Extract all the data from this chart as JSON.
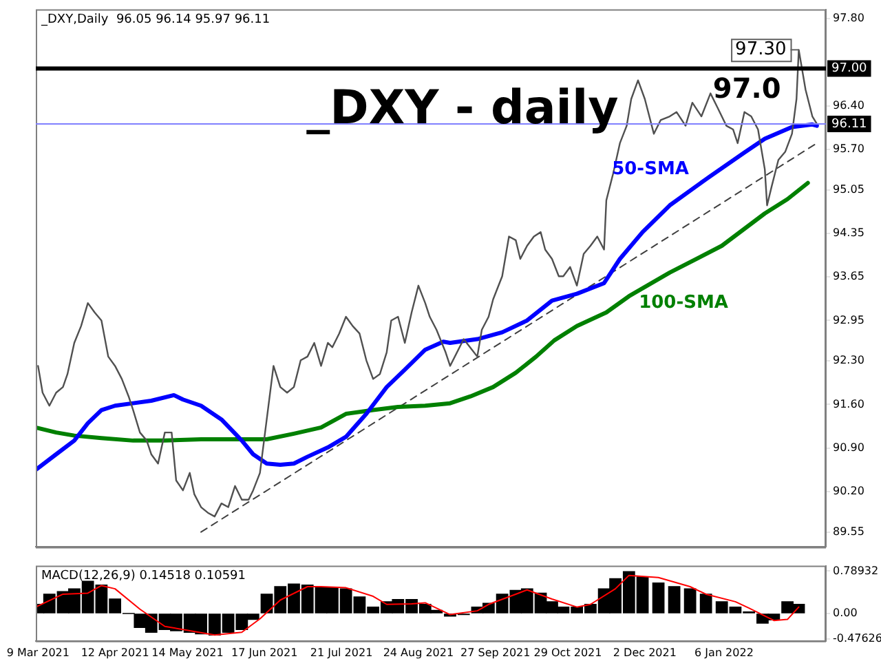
{
  "chart_data": [
    {
      "type": "line",
      "title": "_DXY,Daily  96.05 96.14 95.97 96.11",
      "marker": "none",
      "tick_labels": "y",
      "annotations": [
        "_DXY - daily",
        {
          "text": "97.30",
          "x": "2022-02-08",
          "y": 97.3
        },
        "97.0"
      ],
      "xlim": [
        "2021-03-08",
        "2022-02-20"
      ],
      "ylim": [
        89.31,
        97.95
      ],
      "yticks": [
        {
          "value": 89.55,
          "label": "89.55"
        },
        {
          "value": 90.2,
          "label": "90.20"
        },
        {
          "value": 90.9,
          "label": "90.90"
        },
        {
          "value": 91.6,
          "label": "91.60"
        },
        {
          "value": 92.3,
          "label": "92.30"
        },
        {
          "value": 92.95,
          "label": "92.95"
        },
        {
          "value": 93.65,
          "label": "93.65"
        },
        {
          "value": 94.35,
          "label": "94.35"
        },
        {
          "value": 95.05,
          "label": "95.05"
        },
        {
          "value": 95.7,
          "label": "95.70"
        },
        {
          "value": 96.4,
          "label": "96.40"
        },
        {
          "value": 97.8,
          "label": "97.80"
        }
      ],
      "ref_lines": [
        {
          "axis": "y",
          "value": 97,
          "label": "97.00",
          "color": "#000000"
        },
        {
          "axis": "y",
          "value": 96.11,
          "label": "96.11",
          "color": "#8080ff"
        }
      ],
      "x": [
        "2021-03-09",
        "2021-03-11",
        "2021-03-14",
        "2021-03-17",
        "2021-03-20",
        "2021-03-22",
        "2021-03-25",
        "2021-03-28",
        "2021-03-31",
        "2021-04-03",
        "2021-04-06",
        "2021-04-09",
        "2021-04-12",
        "2021-04-15",
        "2021-04-18",
        "2021-04-20",
        "2021-04-23",
        "2021-04-26",
        "2021-04-28",
        "2021-05-01",
        "2021-05-04",
        "2021-05-07",
        "2021-05-09",
        "2021-05-12",
        "2021-05-15",
        "2021-05-17",
        "2021-05-20",
        "2021-05-23",
        "2021-05-26",
        "2021-05-29",
        "2021-06-01",
        "2021-06-04",
        "2021-06-07",
        "2021-06-10",
        "2021-06-12",
        "2021-06-15",
        "2021-06-18",
        "2021-06-21",
        "2021-06-24",
        "2021-06-27",
        "2021-06-30",
        "2021-07-03",
        "2021-07-06",
        "2021-07-09",
        "2021-07-12",
        "2021-07-15",
        "2021-07-17",
        "2021-07-20",
        "2021-07-23",
        "2021-07-26",
        "2021-07-29",
        "2021-08-01",
        "2021-08-04",
        "2021-08-07",
        "2021-08-10",
        "2021-08-12",
        "2021-08-15",
        "2021-08-18",
        "2021-08-21",
        "2021-08-24",
        "2021-08-27",
        "2021-08-29",
        "2021-09-01",
        "2021-09-05",
        "2021-09-07",
        "2021-09-13",
        "2021-09-19",
        "2021-09-21",
        "2021-09-24",
        "2021-09-26",
        "2021-09-30",
        "2021-10-03",
        "2021-10-06",
        "2021-10-08",
        "2021-10-11",
        "2021-10-14",
        "2021-10-17",
        "2021-10-19",
        "2021-10-22",
        "2021-10-25",
        "2021-10-27",
        "2021-10-30",
        "2021-11-02",
        "2021-11-05",
        "2021-11-08",
        "2021-11-11",
        "2021-11-14",
        "2021-11-15",
        "2021-11-18",
        "2021-11-21",
        "2021-11-24",
        "2021-11-26",
        "2021-11-29",
        "2021-12-02",
        "2021-12-06",
        "2021-12-09",
        "2021-12-13",
        "2021-12-16",
        "2021-12-20",
        "2021-12-23",
        "2021-12-27",
        "2021-12-31",
        "2022-01-03",
        "2022-01-07",
        "2022-01-10",
        "2022-01-12",
        "2022-01-15",
        "2022-01-18",
        "2022-01-21",
        "2022-01-24",
        "2022-01-25",
        "2022-01-27",
        "2022-01-30",
        "2022-02-02",
        "2022-02-05",
        "2022-02-07",
        "2022-02-08",
        "2022-02-11",
        "2022-02-14",
        "2022-02-16"
      ],
      "series": [
        {
          "color": "#505050",
          "values": [
            92.22,
            91.79,
            91.58,
            91.79,
            91.88,
            92.09,
            92.59,
            92.86,
            93.23,
            93.08,
            92.95,
            92.37,
            92.22,
            92.01,
            91.73,
            91.51,
            91.15,
            91.02,
            90.8,
            90.65,
            91.15,
            91.15,
            90.38,
            90.22,
            90.5,
            90.16,
            89.95,
            89.86,
            89.8,
            90.01,
            89.95,
            90.29,
            90.07,
            90.07,
            90.22,
            90.5,
            91.36,
            92.22,
            91.88,
            91.79,
            91.88,
            92.31,
            92.37,
            92.59,
            92.22,
            92.59,
            92.52,
            92.74,
            93.01,
            92.86,
            92.74,
            92.31,
            92.01,
            92.09,
            92.44,
            92.95,
            93.01,
            92.59,
            93.08,
            93.51,
            93.23,
            93.01,
            92.8,
            92.44,
            92.22,
            92.65,
            92.37,
            92.8,
            93.01,
            93.29,
            93.66,
            94.3,
            94.24,
            93.94,
            94.15,
            94.3,
            94.37,
            94.09,
            93.94,
            93.66,
            93.66,
            93.81,
            93.51,
            94.02,
            94.15,
            94.3,
            94.09,
            94.88,
            95.31,
            95.8,
            96.08,
            96.51,
            96.81,
            96.51,
            95.95,
            96.17,
            96.23,
            96.3,
            96.08,
            96.45,
            96.23,
            96.6,
            96.38,
            96.08,
            96.02,
            95.8,
            96.3,
            96.23,
            96.02,
            95.38,
            94.8,
            95.1,
            95.53,
            95.66,
            95.95,
            96.51,
            97.3,
            96.66,
            96.23,
            96.11
          ]
        },
        {
          "name": "50-SMA",
          "color": "#0000ff",
          "x": [
            "2021-03-08",
            "2021-03-17",
            "2021-03-25",
            "2021-03-31",
            "2021-04-06",
            "2021-04-12",
            "2021-04-20",
            "2021-04-28",
            "2021-05-08",
            "2021-05-12",
            "2021-05-20",
            "2021-05-29",
            "2021-06-07",
            "2021-06-12",
            "2021-06-18",
            "2021-06-24",
            "2021-06-30",
            "2021-07-06",
            "2021-07-15",
            "2021-07-23",
            "2021-08-01",
            "2021-08-10",
            "2021-08-18",
            "2021-08-27",
            "2021-09-04",
            "2021-09-07",
            "2021-09-19",
            "2021-09-30",
            "2021-10-11",
            "2021-10-22",
            "2021-11-02",
            "2021-11-14",
            "2021-11-21",
            "2021-12-01",
            "2021-12-13",
            "2021-12-29",
            "2022-01-15",
            "2022-01-24",
            "2022-02-05",
            "2022-02-14",
            "2022-02-16"
          ],
          "values": [
            90.55,
            90.8,
            91.02,
            91.3,
            91.51,
            91.58,
            91.62,
            91.66,
            91.75,
            91.68,
            91.58,
            91.36,
            91.02,
            90.8,
            90.65,
            90.63,
            90.65,
            90.76,
            90.91,
            91.08,
            91.45,
            91.88,
            92.16,
            92.48,
            92.61,
            92.59,
            92.65,
            92.76,
            92.95,
            93.27,
            93.38,
            93.55,
            93.94,
            94.37,
            94.8,
            95.22,
            95.65,
            95.87,
            96.06,
            96.1,
            96.08
          ]
        },
        {
          "name": "100-SMA",
          "color": "#008000",
          "x": [
            "2021-03-08",
            "2021-03-17",
            "2021-03-25",
            "2021-04-06",
            "2021-04-20",
            "2021-05-04",
            "2021-05-20",
            "2021-06-07",
            "2021-06-18",
            "2021-06-30",
            "2021-07-12",
            "2021-07-23",
            "2021-08-04",
            "2021-08-15",
            "2021-08-27",
            "2021-09-07",
            "2021-09-16",
            "2021-09-26",
            "2021-10-06",
            "2021-10-15",
            "2021-10-23",
            "2021-11-02",
            "2021-11-15",
            "2021-11-25",
            "2021-12-13",
            "2022-01-05",
            "2022-01-24",
            "2022-02-03",
            "2022-02-12"
          ],
          "values": [
            91.23,
            91.15,
            91.1,
            91.06,
            91.02,
            91.02,
            91.04,
            91.04,
            91.04,
            91.13,
            91.23,
            91.45,
            91.51,
            91.56,
            91.58,
            91.62,
            91.73,
            91.88,
            92.11,
            92.37,
            92.63,
            92.86,
            93.08,
            93.34,
            93.72,
            94.15,
            94.67,
            94.9,
            95.16
          ]
        },
        {
          "type": "line",
          "color": "#404040",
          "line_style": "dashed",
          "x": [
            "2021-05-20",
            "2022-02-16"
          ],
          "values": [
            89.55,
            95.8
          ]
        }
      ]
    },
    {
      "type": "bar",
      "title": "MACD(12,26,9) 0.14518 0.10591",
      "marker": "none",
      "xlim": [
        "2021-03-08",
        "2022-02-20"
      ],
      "ylim": [
        -0.51,
        0.89
      ],
      "xticks": [
        {
          "value": "2021-03-09",
          "label": "9 Mar 2021"
        },
        {
          "value": "2021-04-12",
          "label": "12 Apr 2021"
        },
        {
          "value": "2021-05-14",
          "label": "14 May 2021"
        },
        {
          "value": "2021-06-17",
          "label": "17 Jun 2021"
        },
        {
          "value": "2021-07-21",
          "label": "21 Jul 2021"
        },
        {
          "value": "2021-08-24",
          "label": "24 Aug 2021"
        },
        {
          "value": "2021-09-27",
          "label": "27 Sep 2021"
        },
        {
          "value": "2021-10-29",
          "label": "29 Oct 2021"
        },
        {
          "value": "2021-12-02",
          "label": "2 Dec 2021"
        },
        {
          "value": "2022-01-06",
          "label": "6 Jan 2022"
        }
      ],
      "yticks": [
        {
          "value": -0.47626,
          "label": "-0.47626"
        },
        {
          "value": 0,
          "label": "0.00"
        },
        {
          "value": 0.78932,
          "label": "0.78932"
        }
      ],
      "x": [
        "2021-03-09",
        "2021-03-14",
        "2021-03-20",
        "2021-03-25",
        "2021-03-31",
        "2021-04-06",
        "2021-04-12",
        "2021-04-18",
        "2021-04-23",
        "2021-04-28",
        "2021-05-04",
        "2021-05-09",
        "2021-05-15",
        "2021-05-20",
        "2021-05-26",
        "2021-06-01",
        "2021-06-07",
        "2021-06-12",
        "2021-06-18",
        "2021-06-24",
        "2021-06-30",
        "2021-07-06",
        "2021-07-12",
        "2021-07-17",
        "2021-07-23",
        "2021-07-29",
        "2021-08-04",
        "2021-08-10",
        "2021-08-15",
        "2021-08-21",
        "2021-08-27",
        "2021-09-01",
        "2021-09-07",
        "2021-09-13",
        "2021-09-19",
        "2021-09-24",
        "2021-09-30",
        "2021-10-06",
        "2021-10-11",
        "2021-10-17",
        "2021-10-22",
        "2021-10-27",
        "2021-11-02",
        "2021-11-08",
        "2021-11-14",
        "2021-11-19",
        "2021-11-25",
        "2021-12-01",
        "2021-12-08",
        "2021-12-15",
        "2021-12-22",
        "2021-12-29",
        "2022-01-05",
        "2022-01-11",
        "2022-01-17",
        "2022-01-23",
        "2022-01-28",
        "2022-02-03",
        "2022-02-08"
      ],
      "series": [
        {
          "color": "#000000",
          "values": [
            0.17,
            0.36,
            0.41,
            0.46,
            0.6,
            0.53,
            0.27,
            0,
            -0.26,
            -0.35,
            -0.3,
            -0.32,
            -0.35,
            -0.38,
            -0.4,
            -0.35,
            -0.3,
            -0.11,
            0.36,
            0.5,
            0.55,
            0.53,
            0.48,
            0.48,
            0.46,
            0.31,
            0.12,
            0.22,
            0.26,
            0.26,
            0.17,
            0.06,
            -0.05,
            -0.02,
            0.12,
            0.19,
            0.36,
            0.43,
            0.46,
            0.38,
            0.22,
            0.12,
            0.12,
            0.17,
            0.46,
            0.65,
            0.78,
            0.68,
            0.57,
            0.5,
            0.46,
            0.36,
            0.22,
            0.12,
            0.03,
            -0.18,
            -0.12,
            0.22,
            0.17
          ]
        },
        {
          "type": "line",
          "color": "#ff0000",
          "x": [
            "2021-03-08",
            "2021-03-20",
            "2021-03-31",
            "2021-04-06",
            "2021-04-12",
            "2021-04-23",
            "2021-05-04",
            "2021-05-15",
            "2021-05-26",
            "2021-06-07",
            "2021-06-15",
            "2021-06-24",
            "2021-07-06",
            "2021-07-12",
            "2021-07-23",
            "2021-08-04",
            "2021-08-10",
            "2021-08-21",
            "2021-08-27",
            "2021-09-07",
            "2021-09-19",
            "2021-09-24",
            "2021-10-06",
            "2021-10-11",
            "2021-10-22",
            "2021-11-02",
            "2021-11-08",
            "2021-11-19",
            "2021-11-25",
            "2021-12-08",
            "2021-12-22",
            "2021-12-29",
            "2022-01-11",
            "2022-01-17",
            "2022-01-28",
            "2022-02-03",
            "2022-02-08"
          ],
          "values": [
            0.12,
            0.36,
            0.38,
            0.52,
            0.46,
            0.08,
            -0.24,
            -0.32,
            -0.4,
            -0.35,
            -0.1,
            0.25,
            0.5,
            0.5,
            0.48,
            0.32,
            0.17,
            0.18,
            0.2,
            -0.02,
            0.05,
            0.17,
            0.36,
            0.44,
            0.27,
            0.12,
            0.17,
            0.46,
            0.71,
            0.67,
            0.5,
            0.36,
            0.22,
            0.1,
            -0.13,
            -0.11,
            0.12
          ]
        }
      ]
    }
  ]
}
